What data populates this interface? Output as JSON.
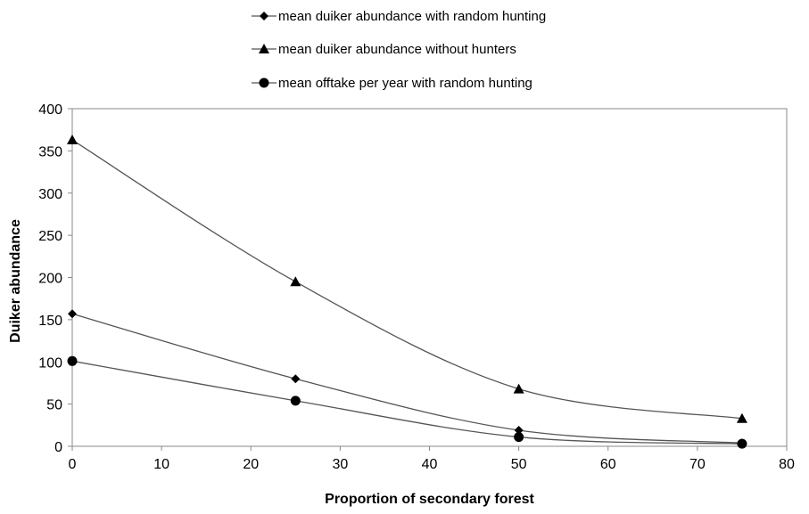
{
  "chart_data": {
    "type": "line",
    "title": "",
    "xlabel": "Proportion of secondary forest",
    "ylabel": "Duiker abundance",
    "xlim": [
      0,
      80
    ],
    "ylim": [
      0,
      400
    ],
    "xticks": [
      0,
      10,
      20,
      30,
      40,
      50,
      60,
      70,
      80
    ],
    "yticks": [
      0,
      50,
      100,
      150,
      200,
      250,
      300,
      350,
      400
    ],
    "grid": false,
    "legend_position": "top-center",
    "x": [
      0,
      25,
      50,
      75
    ],
    "series": [
      {
        "name": "mean duiker abundance with random hunting",
        "marker": "diamond",
        "values": [
          157,
          80,
          19,
          4
        ]
      },
      {
        "name": "mean duiker abundance without hunters",
        "marker": "triangle",
        "values": [
          363,
          195,
          68,
          33
        ]
      },
      {
        "name": "mean offtake per year with random hunting",
        "marker": "circle",
        "values": [
          101,
          54,
          11,
          3
        ]
      }
    ],
    "line_color": "#555555",
    "marker_color": "#000000"
  }
}
